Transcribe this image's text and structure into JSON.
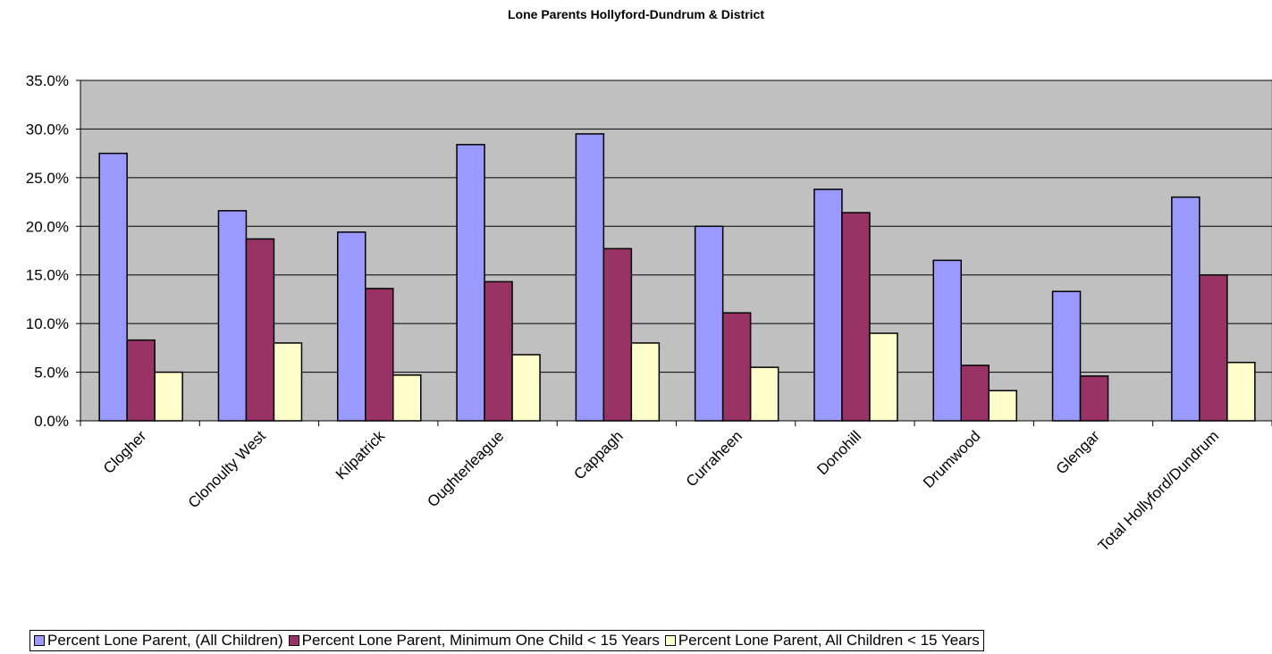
{
  "chart_data": {
    "type": "bar",
    "title": "Lone Parents Hollyford-Dundrum & District",
    "xlabel": "",
    "ylabel": "",
    "ylim": [
      0,
      0.35
    ],
    "ytick_step": 0.05,
    "ytick_format": "percent_1dp",
    "grid": true,
    "legend_position": "bottom",
    "plot_background": "#C0C0C0",
    "categories": [
      "Clogher",
      "Clonoulty West",
      "Kilpatrick",
      "Oughterleague",
      "Cappagh",
      "Curraheen",
      "Donohill",
      "Drumwood",
      "Glengar",
      "Total Hollyford/Dundrum"
    ],
    "series": [
      {
        "name": "Percent Lone Parent, (All Children)",
        "color": "#9999FF",
        "values": [
          0.275,
          0.216,
          0.194,
          0.284,
          0.295,
          0.2,
          0.238,
          0.165,
          0.133,
          0.23
        ]
      },
      {
        "name": "Percent Lone Parent, Minimum One Child < 15 Years",
        "color": "#993366",
        "values": [
          0.083,
          0.187,
          0.136,
          0.143,
          0.177,
          0.111,
          0.214,
          0.057,
          0.046,
          0.15
        ]
      },
      {
        "name": "Percent Lone Parent, All Children < 15 Years",
        "color": "#FFFFCC",
        "values": [
          0.05,
          0.08,
          0.047,
          0.068,
          0.08,
          0.055,
          0.09,
          0.031,
          0.0,
          0.06
        ]
      }
    ]
  }
}
